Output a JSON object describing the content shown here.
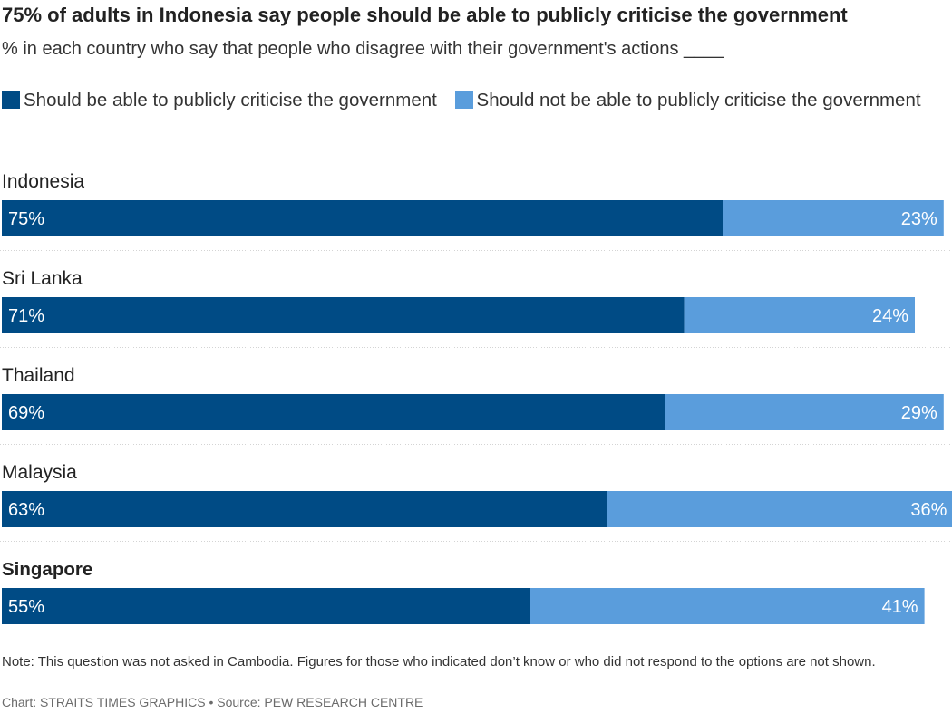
{
  "chart_data": {
    "type": "bar",
    "orientation": "horizontal",
    "stacked": true,
    "title": "75% of adults in Indonesia say people should be able to publicly criticise the government",
    "subtitle": "% in each country who say that people who disagree with their government's actions ____",
    "categories": [
      "Indonesia",
      "Sri Lanka",
      "Thailand",
      "Malaysia",
      "Singapore"
    ],
    "highlighted_category": "Singapore",
    "series": [
      {
        "name": "Should be able to publicly criticise the government",
        "color": "#004b85",
        "values": [
          75,
          71,
          69,
          63,
          55
        ],
        "labels": [
          "75%",
          "71%",
          "69%",
          "63%",
          "55%"
        ]
      },
      {
        "name": "Should not be able to publicly criticise the government",
        "color": "#5a9ddc",
        "values": [
          23,
          24,
          29,
          36,
          41
        ],
        "labels": [
          "23%",
          "24%",
          "29%",
          "36%",
          "41%"
        ]
      }
    ],
    "xlim": [
      0,
      100
    ],
    "grid": false,
    "legend_position": "top"
  },
  "note": "Note: This question was not asked in Cambodia. Figures for those who indicated don’t know or who did not respond to the options are not shown.",
  "credit": "Chart: STRAITS TIMES GRAPHICS • Source: PEW RESEARCH CENTRE"
}
